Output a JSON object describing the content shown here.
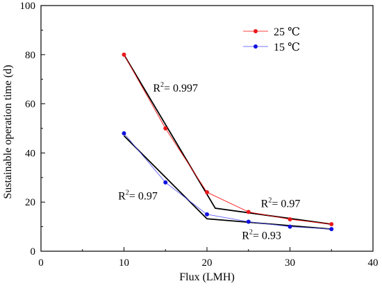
{
  "chart_data": {
    "type": "line",
    "xlabel": "Flux (LMH)",
    "ylabel": "Sustainable operation time (d)",
    "xlim": [
      0,
      40
    ],
    "ylim": [
      0,
      100
    ],
    "xticks": [
      0,
      10,
      20,
      30,
      40
    ],
    "yticks": [
      0,
      20,
      40,
      60,
      80,
      100
    ],
    "xtick_labels": [
      "0",
      "10",
      "20",
      "30",
      "40"
    ],
    "ytick_labels": [
      "0",
      "20",
      "40",
      "60",
      "80",
      "100"
    ],
    "grid": false,
    "legend_position": "top-right",
    "series": [
      {
        "name": "25 ℃",
        "color": "#ff0000",
        "marker_color": "#e8191b",
        "x": [
          10,
          15,
          20,
          25,
          30,
          35
        ],
        "y": [
          80,
          50,
          24,
          16,
          13,
          11
        ]
      },
      {
        "name": "15 ℃",
        "color": "#4a4aff",
        "marker_color": "#1010e0",
        "x": [
          10,
          15,
          20,
          25,
          30,
          35
        ],
        "y": [
          48,
          28,
          15,
          12,
          10,
          9
        ]
      }
    ],
    "fit_lines": [
      {
        "for_series": "25 ℃",
        "color": "#000000",
        "x": [
          10,
          21,
          35
        ],
        "y": [
          80,
          17.5,
          11
        ]
      },
      {
        "for_series": "15 ℃",
        "color": "#000000",
        "x": [
          10,
          20,
          35
        ],
        "y": [
          47,
          13.2,
          9
        ]
      }
    ],
    "annotations": [
      {
        "base": "R",
        "sup": "2",
        "text": "= 0.997",
        "x": 13.5,
        "y": 65
      },
      {
        "base": "R",
        "sup": "2",
        "text": "= 0.97",
        "x": 9.3,
        "y": 21
      },
      {
        "base": "R",
        "sup": "2",
        "text": "= 0.97",
        "x": 26.5,
        "y": 18
      },
      {
        "base": "R",
        "sup": "2",
        "text": "= 0.93",
        "x": 24.2,
        "y": 5
      }
    ]
  }
}
